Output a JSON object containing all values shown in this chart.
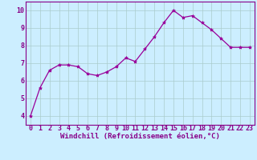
{
  "x": [
    0,
    1,
    2,
    3,
    4,
    5,
    6,
    7,
    8,
    9,
    10,
    11,
    12,
    13,
    14,
    15,
    16,
    17,
    18,
    19,
    20,
    21,
    22,
    23
  ],
  "y": [
    4.0,
    5.6,
    6.6,
    6.9,
    6.9,
    6.8,
    6.4,
    6.3,
    6.5,
    6.8,
    7.3,
    7.1,
    7.8,
    8.5,
    9.3,
    10.0,
    9.6,
    9.7,
    9.3,
    8.9,
    8.4,
    7.9,
    7.9,
    7.9
  ],
  "line_color": "#990099",
  "marker": "*",
  "marker_size": 3,
  "bg_color": "#cceeff",
  "grid_color": "#aacccc",
  "xlabel": "Windchill (Refroidissement éolien,°C)",
  "xlim": [
    -0.5,
    23.5
  ],
  "ylim": [
    3.5,
    10.5
  ],
  "yticks": [
    4,
    5,
    6,
    7,
    8,
    9,
    10
  ],
  "xticks": [
    0,
    1,
    2,
    3,
    4,
    5,
    6,
    7,
    8,
    9,
    10,
    11,
    12,
    13,
    14,
    15,
    16,
    17,
    18,
    19,
    20,
    21,
    22,
    23
  ],
  "xlabel_fontsize": 6.5,
  "tick_fontsize": 6,
  "label_color": "#880088",
  "tick_color": "#880088",
  "spine_color": "#880088",
  "line_width": 0.9
}
